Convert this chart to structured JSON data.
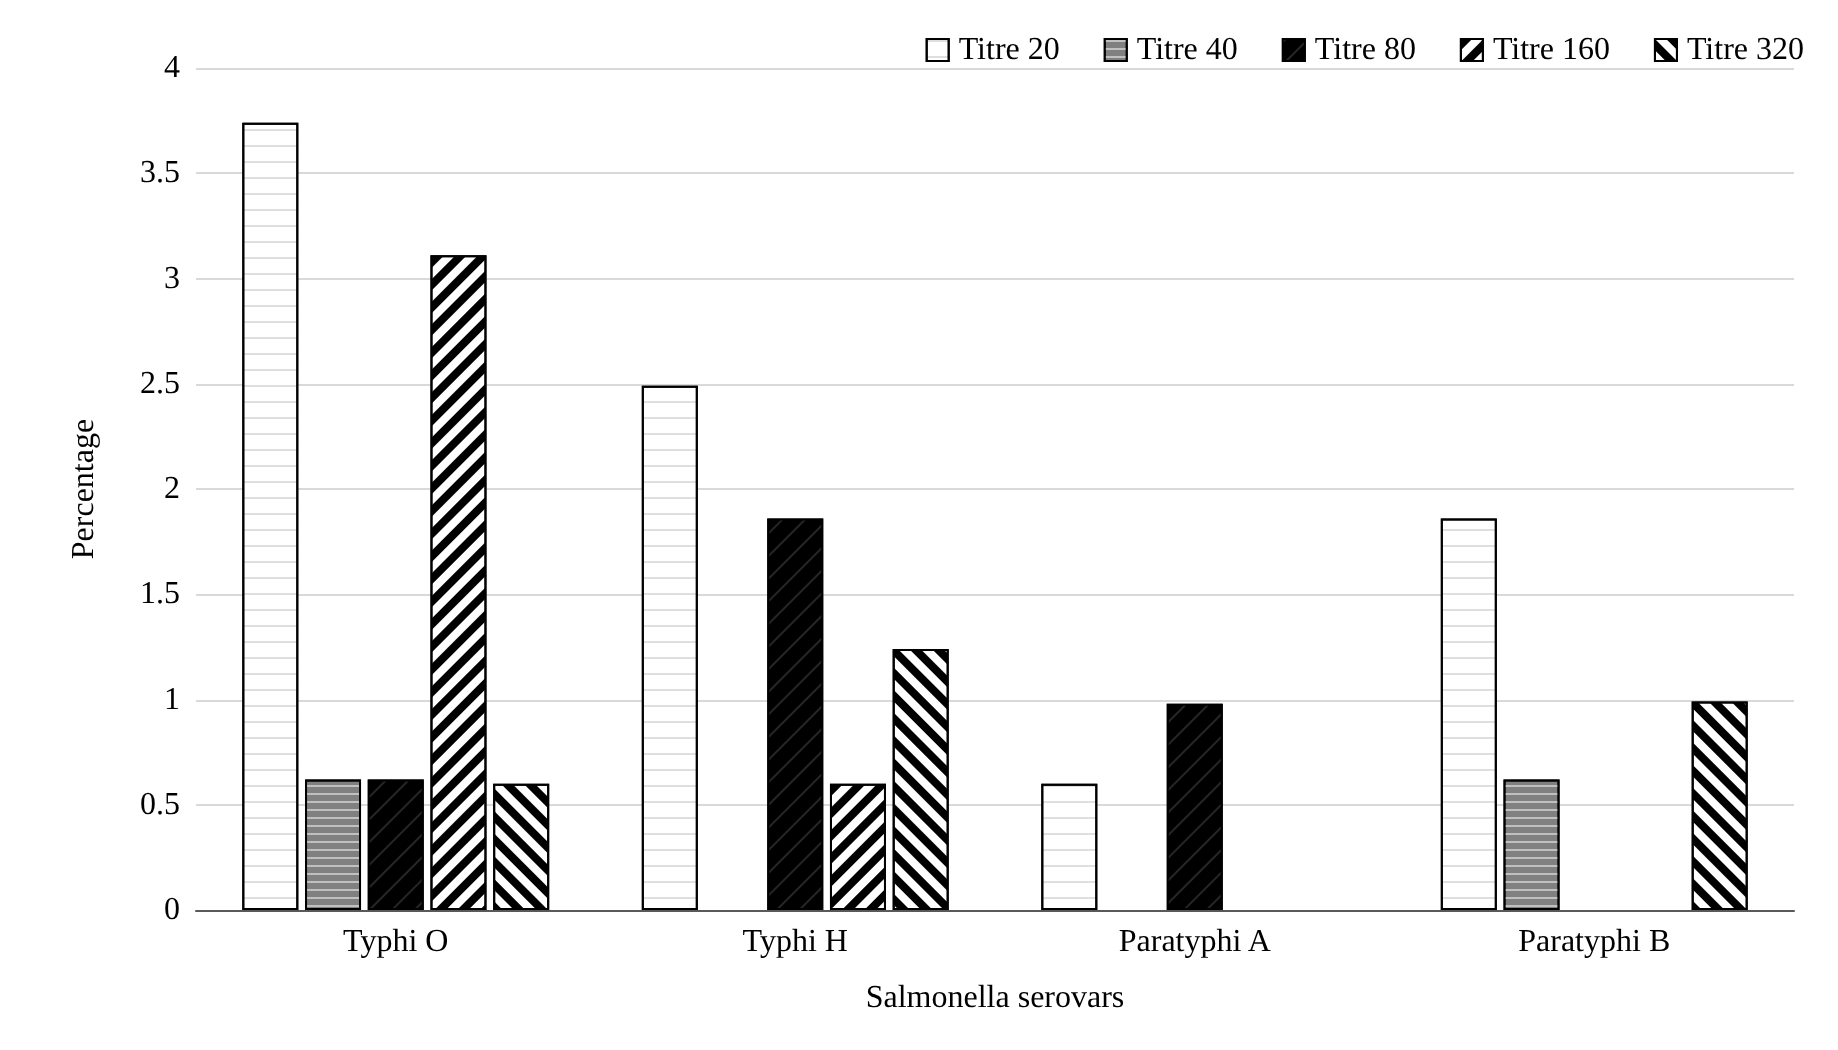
{
  "chart_data": {
    "type": "bar",
    "xlabel": "Salmonella serovars",
    "ylabel": "Percentage",
    "categories": [
      "Typhi O",
      "Typhi H",
      "Paratyphi A",
      "Paratyphi B"
    ],
    "series": [
      {
        "name": "Titre 20",
        "color": "#ffffff",
        "values": [
          3.74,
          2.49,
          0.6,
          1.86
        ]
      },
      {
        "name": "Titre 40",
        "color": "#808080",
        "values": [
          0.62,
          null,
          null,
          0.62
        ]
      },
      {
        "name": "Titre 80",
        "color": "#000000",
        "values": [
          0.62,
          1.86,
          0.98,
          null
        ]
      },
      {
        "name": "Titre 160",
        "color": "#ffffff",
        "values": [
          3.11,
          0.6,
          null,
          null
        ]
      },
      {
        "name": "Titre 320",
        "color": "#ffffff",
        "values": [
          0.6,
          1.24,
          null,
          0.99
        ]
      }
    ],
    "ylim": [
      0,
      4
    ],
    "yticks": [
      0,
      0.5,
      1,
      1.5,
      2,
      2.5,
      3,
      3.5,
      4
    ],
    "grid": "y",
    "legend": "top right"
  }
}
